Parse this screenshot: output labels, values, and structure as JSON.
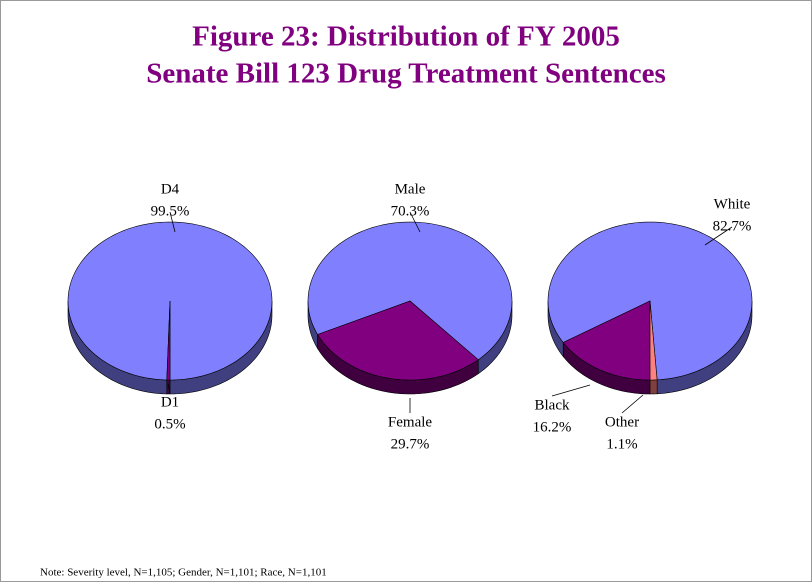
{
  "title": [
    "Figure 23: Distribution of FY 2005",
    "Senate Bill 123 Drug Treatment Sentences"
  ],
  "note": "Note: Severity level, N=1,105; Gender, N=1,101; Race, N=1,101",
  "chart_data": [
    {
      "type": "pie",
      "categories": [
        "D4",
        "D1"
      ],
      "values": [
        99.5,
        0.5
      ],
      "value_labels": [
        "99.5%",
        "0.5%"
      ],
      "colors": [
        "#8080ff",
        "#800080"
      ]
    },
    {
      "type": "pie",
      "categories": [
        "Male",
        "Female"
      ],
      "values": [
        70.3,
        29.7
      ],
      "value_labels": [
        "70.3%",
        "29.7%"
      ],
      "colors": [
        "#8080ff",
        "#800080"
      ]
    },
    {
      "type": "pie",
      "categories": [
        "White",
        "Black",
        "Other"
      ],
      "values": [
        82.7,
        16.2,
        1.1
      ],
      "value_labels": [
        "82.7%",
        "16.2%",
        "1.1%"
      ],
      "colors": [
        "#8080ff",
        "#800080",
        "#ff8080"
      ]
    }
  ]
}
